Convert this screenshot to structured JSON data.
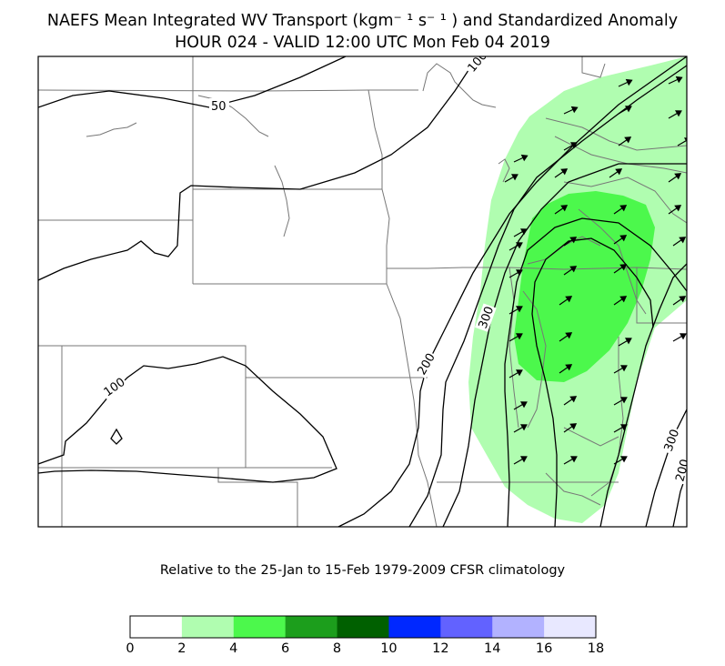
{
  "title": {
    "line1": "NAEFS Mean Integrated WV Transport (kgm⁻ ¹ s⁻ ¹ ) and Standardized Anomaly",
    "line2": "HOUR 024 - VALID 12:00 UTC Mon Feb 04 2019"
  },
  "subtitle": "Relative to the 25-Jan to 15-Feb 1979-2009 CFSR climatology",
  "contour_labels": [
    "50",
    "100",
    "100",
    "200",
    "300",
    "300",
    "200"
  ],
  "colorbar": {
    "ticks": [
      "0",
      "2",
      "4",
      "6",
      "8",
      "10",
      "12",
      "14",
      "16",
      "18"
    ],
    "colors": [
      "#ffffff",
      "#b0fdb0",
      "#4cf84c",
      "#1c9e1c",
      "#006000",
      "#0028ff",
      "#6262ff",
      "#b2b2ff",
      "#e8e8ff"
    ]
  },
  "anomaly_colors": {
    "2-4": "#b0fdb0",
    "4-6": "#4cf84c"
  }
}
